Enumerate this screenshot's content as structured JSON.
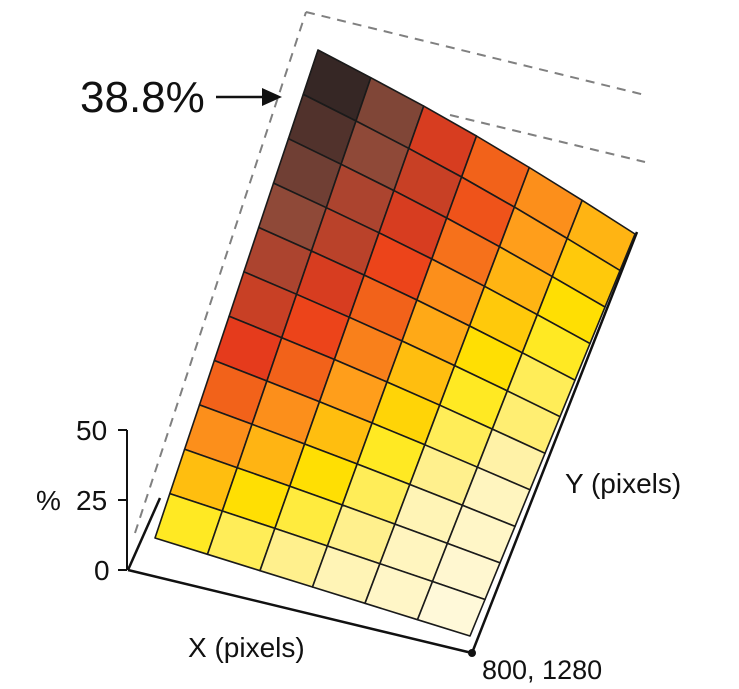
{
  "chart_data": {
    "type": "heatmap",
    "surface": "3d",
    "title": "",
    "xlabel": "X (pixels)",
    "ylabel": "Y (pixels)",
    "zlabel": "%",
    "zlim": [
      0,
      50
    ],
    "z_ticks": [
      "0",
      "25",
      "50"
    ],
    "corner_label": "800, 1280",
    "annotation": {
      "text": "38.8%",
      "value": 38.8
    },
    "grid_shape": [
      11,
      6
    ],
    "values": [
      [
        38.8,
        34,
        28,
        24,
        21,
        18
      ],
      [
        37,
        33,
        29,
        25,
        20,
        16
      ],
      [
        35,
        31,
        28,
        23,
        18,
        14
      ],
      [
        33,
        30,
        26,
        21,
        16,
        12
      ],
      [
        31,
        28,
        24,
        19,
        14,
        10
      ],
      [
        29,
        26,
        22,
        17,
        12,
        9
      ],
      [
        27,
        24,
        20,
        15,
        10,
        7
      ],
      [
        24,
        21,
        17,
        12,
        8,
        5
      ],
      [
        21,
        18,
        14,
        10,
        6,
        4
      ],
      [
        17,
        14,
        11,
        8,
        5,
        3
      ],
      [
        12,
        10,
        8,
        6,
        4,
        2
      ]
    ],
    "colormap": [
      "#fffbea",
      "#fff3b0",
      "#ffe600",
      "#ff9e1b",
      "#ea3a1a",
      "#8a4a3a",
      "#231f20"
    ],
    "grid": false
  }
}
